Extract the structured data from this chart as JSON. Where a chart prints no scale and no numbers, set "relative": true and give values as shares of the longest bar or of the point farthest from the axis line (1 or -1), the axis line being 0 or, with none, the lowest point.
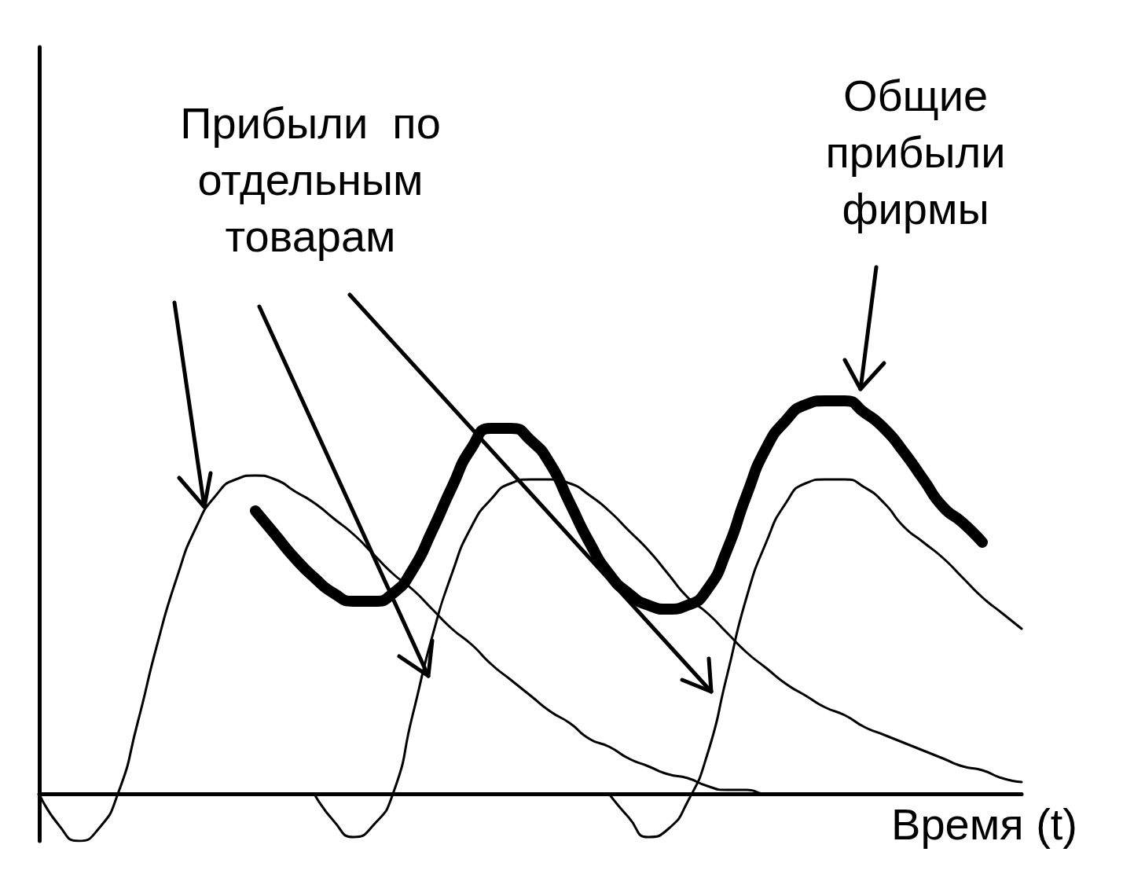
{
  "chart_data": {
    "type": "line",
    "relative": true,
    "xlabel": "Время (t)",
    "grid": false,
    "marker": "none",
    "line_style": "solid",
    "annotations": [
      "Прибыли  по\nотдельным\nтоварам",
      "Общие\nприбыли\nфирмы"
    ],
    "categories": [
      null,
      null,
      null,
      null,
      null,
      null,
      null,
      null,
      null,
      null,
      null,
      null,
      null,
      null,
      null,
      null,
      null,
      null,
      null,
      null,
      null,
      null,
      null,
      null,
      null,
      null,
      null,
      null,
      null,
      null,
      null,
      null,
      null,
      null,
      null,
      null,
      null,
      null,
      null,
      null,
      null,
      null,
      null,
      null,
      null,
      null,
      null,
      null,
      null,
      null,
      null
    ],
    "series": [
      {
        "color": "#000000",
        "values": [
          0,
          -0.08,
          -0.12,
          -0.09,
          0,
          0.18,
          0.38,
          0.55,
          0.68,
          0.76,
          0.8,
          0.81,
          0.8,
          0.77,
          0.74,
          0.7,
          0.66,
          0.61,
          0.56,
          0.52,
          0.47,
          0.42,
          0.38,
          0.33,
          0.29,
          0.25,
          0.21,
          0.18,
          0.14,
          0.12,
          0.09,
          0.07,
          0.05,
          0.04,
          0.02,
          0.01,
          0.01,
          0,
          0,
          null,
          null,
          null,
          null,
          null,
          null,
          null,
          null,
          null,
          null,
          null,
          null
        ]
      },
      {
        "color": "#000000",
        "values": [
          null,
          null,
          null,
          null,
          null,
          null,
          null,
          null,
          null,
          null,
          null,
          null,
          null,
          null,
          0,
          -0.07,
          -0.11,
          -0.08,
          0,
          0.2,
          0.4,
          0.56,
          0.68,
          0.75,
          0.79,
          0.8,
          0.8,
          0.79,
          0.76,
          0.72,
          0.67,
          0.62,
          0.56,
          0.5,
          0.46,
          0.41,
          0.36,
          0.32,
          0.28,
          0.25,
          0.22,
          0.2,
          0.17,
          0.15,
          0.13,
          0.11,
          0.09,
          0.07,
          0.06,
          0.04,
          0.03
        ]
      },
      {
        "color": "#000000",
        "values": [
          null,
          null,
          null,
          null,
          null,
          null,
          null,
          null,
          null,
          null,
          null,
          null,
          null,
          null,
          null,
          null,
          null,
          null,
          null,
          null,
          null,
          null,
          null,
          null,
          null,
          null,
          null,
          null,
          null,
          0,
          -0.06,
          -0.11,
          -0.09,
          -0.02,
          0.1,
          0.3,
          0.5,
          0.64,
          0.74,
          0.79,
          0.8,
          0.8,
          0.78,
          0.74,
          0.68,
          0.64,
          0.6,
          0.55,
          0.5,
          0.46,
          0.42
        ]
      },
      {
        "color": "#000000",
        "values": [
          null,
          null,
          null,
          null,
          null,
          null,
          null,
          null,
          null,
          null,
          null,
          0.72,
          0.66,
          0.6,
          0.55,
          0.51,
          0.49,
          0.49,
          0.51,
          0.57,
          0.67,
          0.78,
          0.88,
          0.93,
          0.93,
          0.9,
          0.84,
          0.74,
          0.64,
          0.56,
          0.51,
          0.48,
          0.47,
          0.48,
          0.52,
          0.62,
          0.76,
          0.88,
          0.95,
          0.99,
          1,
          1,
          0.97,
          0.93,
          0.87,
          0.8,
          0.73,
          0.69,
          0.64,
          null,
          null
        ]
      }
    ]
  }
}
